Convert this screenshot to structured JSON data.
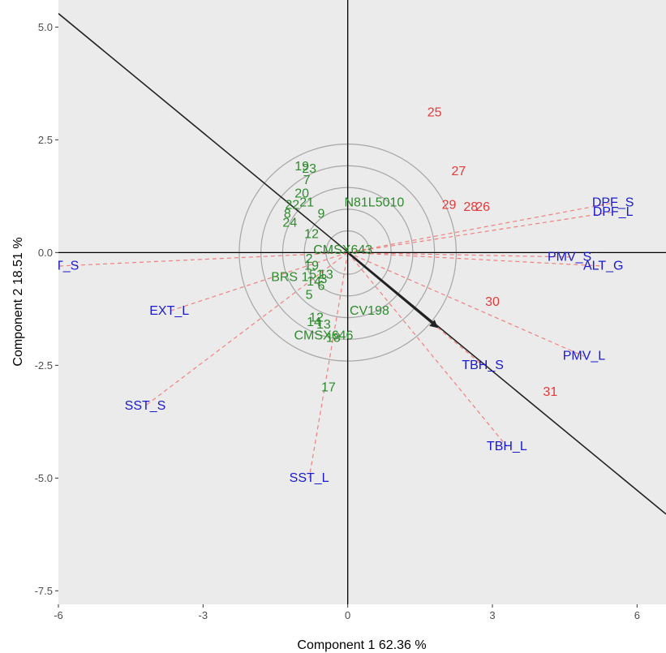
{
  "chart_data": {
    "type": "scatter",
    "subtype": "GGE biplot (which-won-where / mean vs stability)",
    "title": "",
    "xlabel": "Component 1 62.36 %",
    "ylabel": "Component 2 18.51 %",
    "xlim": [
      -6.0,
      6.6
    ],
    "ylim": [
      -7.8,
      5.6
    ],
    "xticks": [
      -6,
      -3,
      0,
      3,
      6
    ],
    "yticks": [
      -7.5,
      -5.0,
      -2.5,
      0.0,
      2.5,
      5.0
    ],
    "xtick_labels": [
      "-6",
      "-3",
      "0",
      "3",
      "6"
    ],
    "ytick_labels": [
      "-7.5",
      "-5.0",
      "-2.5",
      "0.0",
      "2.5",
      "5.0"
    ],
    "grid": false,
    "panel_background": "#ebebeb",
    "colors": {
      "environment": "#1a1acc",
      "genotype_group_a": "#2e8b2e",
      "genotype_group_b": "#e23a3a",
      "environment_vector": "#f08080",
      "axis_line": "#000000",
      "circle": "#a6a6a6"
    },
    "environments": [
      {
        "label": "DPF_S",
        "x": 5.5,
        "y": 1.1
      },
      {
        "label": "DPF_L",
        "x": 5.5,
        "y": 0.9
      },
      {
        "label": "PMV_S",
        "x": 4.6,
        "y": -0.1
      },
      {
        "label": "ALT_G",
        "x": 5.3,
        "y": -0.3
      },
      {
        "label": "EXT_S",
        "x": -6.0,
        "y": -0.3
      },
      {
        "label": "EXT_L",
        "x": -3.7,
        "y": -1.3
      },
      {
        "label": "PMV_L",
        "x": 4.9,
        "y": -2.3
      },
      {
        "label": "TBH_S",
        "x": 2.8,
        "y": -2.5
      },
      {
        "label": "TBH_L",
        "x": 3.3,
        "y": -4.3
      },
      {
        "label": "SST_S",
        "x": -4.2,
        "y": -3.4
      },
      {
        "label": "SST_L",
        "x": -0.8,
        "y": -5.0
      }
    ],
    "genotypes_group_a": [
      {
        "label": "19",
        "x": -0.95,
        "y": 1.9
      },
      {
        "label": "23",
        "x": -0.8,
        "y": 1.85
      },
      {
        "label": "7",
        "x": -0.85,
        "y": 1.6
      },
      {
        "label": "20",
        "x": -0.95,
        "y": 1.3
      },
      {
        "label": "21",
        "x": -0.85,
        "y": 1.1
      },
      {
        "label": "22",
        "x": -1.15,
        "y": 1.05
      },
      {
        "label": "8",
        "x": -1.25,
        "y": 0.85
      },
      {
        "label": "9",
        "x": -0.55,
        "y": 0.85
      },
      {
        "label": "24",
        "x": -1.2,
        "y": 0.65
      },
      {
        "label": "12",
        "x": -0.75,
        "y": 0.4
      },
      {
        "label": "N81L5010",
        "x": 0.55,
        "y": 1.1
      },
      {
        "label": "CMSX643",
        "x": -0.1,
        "y": 0.05
      },
      {
        "label": "2",
        "x": -0.8,
        "y": -0.15
      },
      {
        "label": "19",
        "x": -0.75,
        "y": -0.3
      },
      {
        "label": "BRS 1",
        "x": -1.2,
        "y": -0.55
      },
      {
        "label": "51",
        "x": -0.65,
        "y": -0.5
      },
      {
        "label": "13",
        "x": -0.45,
        "y": -0.5
      },
      {
        "label": "3",
        "x": -0.5,
        "y": -0.6
      },
      {
        "label": "14",
        "x": -0.7,
        "y": -0.65
      },
      {
        "label": "6",
        "x": -0.55,
        "y": -0.75
      },
      {
        "label": "5",
        "x": -0.8,
        "y": -0.95
      },
      {
        "label": "CV198",
        "x": 0.45,
        "y": -1.3
      },
      {
        "label": "12",
        "x": -0.65,
        "y": -1.45
      },
      {
        "label": "14",
        "x": -0.7,
        "y": -1.55
      },
      {
        "label": "13",
        "x": -0.5,
        "y": -1.6
      },
      {
        "label": "CMSX646",
        "x": -0.5,
        "y": -1.85
      },
      {
        "label": "18",
        "x": -0.3,
        "y": -1.9
      },
      {
        "label": "17",
        "x": -0.4,
        "y": -3.0
      }
    ],
    "genotypes_group_b": [
      {
        "label": "25",
        "x": 1.8,
        "y": 3.1
      },
      {
        "label": "27",
        "x": 2.3,
        "y": 1.8
      },
      {
        "label": "29",
        "x": 2.1,
        "y": 1.05
      },
      {
        "label": "28",
        "x": 2.55,
        "y": 1.0
      },
      {
        "label": "26",
        "x": 2.8,
        "y": 1.0
      },
      {
        "label": "30",
        "x": 3.0,
        "y": -1.1
      },
      {
        "label": "31",
        "x": 4.2,
        "y": -3.1
      }
    ],
    "concentric_circle_radii": [
      0.45,
      0.9,
      1.35,
      1.8,
      2.25
    ],
    "average_environment_axis": {
      "start": [
        -6.0,
        5.3
      ],
      "end": [
        6.6,
        -5.8
      ]
    },
    "average_environment_arrow": {
      "start": [
        0.0,
        0.0
      ],
      "end": [
        1.85,
        -1.65
      ]
    }
  }
}
